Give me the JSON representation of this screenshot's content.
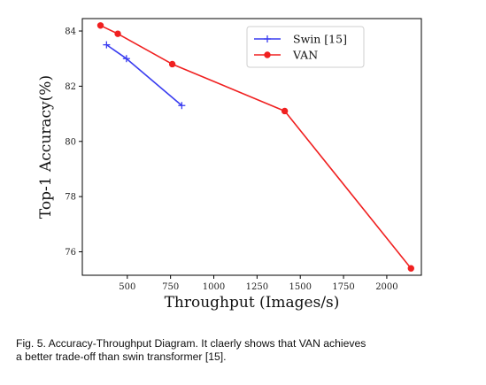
{
  "chart_data": {
    "type": "line",
    "xlabel": "Throughput (Images/s)",
    "ylabel": "Top-1 Accuracy(%)",
    "xlim": [
      240,
      2200
    ],
    "ylim": [
      75.15,
      84.45
    ],
    "x_ticks": [
      500,
      750,
      1000,
      1250,
      1500,
      1750,
      2000
    ],
    "y_ticks": [
      76,
      78,
      80,
      82,
      84
    ],
    "grid": false,
    "legend_position": "top-right",
    "series": [
      {
        "name": "Swin [15]",
        "color": "#3a3df0",
        "marker": "plus",
        "x": [
          380,
          495,
          815
        ],
        "y": [
          83.5,
          83.0,
          81.3
        ]
      },
      {
        "name": "VAN",
        "color": "#f02020",
        "marker": "circle",
        "x": [
          345,
          445,
          760,
          1410,
          2140
        ],
        "y": [
          84.2,
          83.9,
          82.8,
          81.1,
          75.4
        ]
      }
    ]
  },
  "caption": {
    "line1": "Fig. 5. Accuracy-Throughput Diagram. It claerly shows that VAN achieves",
    "line2": "a better trade-off than swin transformer [15]."
  }
}
